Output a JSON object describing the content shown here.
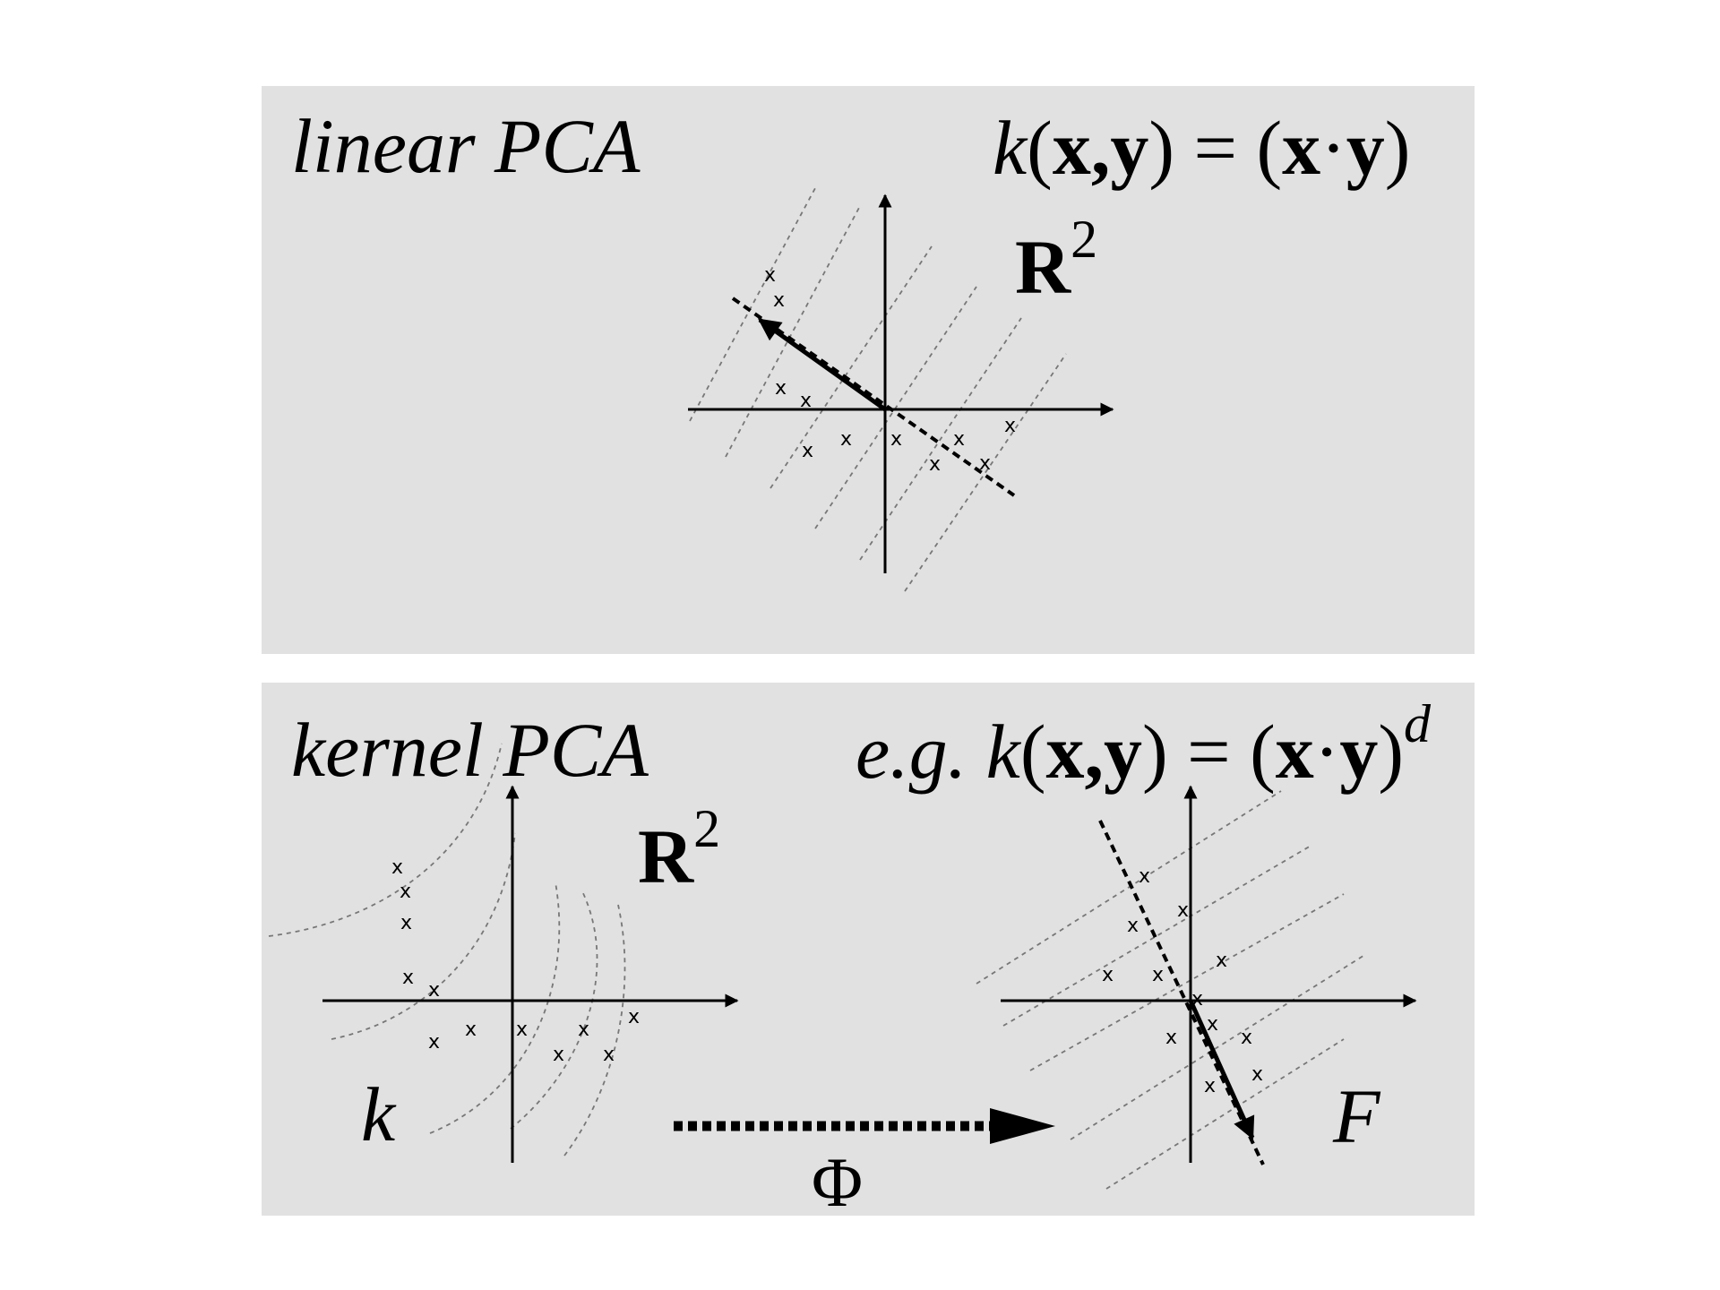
{
  "top_panel": {
    "title": "linear PCA",
    "kernel": {
      "k": "k",
      "lparen": "(",
      "args": "x,y",
      "eq": ") = (",
      "x": "x",
      "dot": "·",
      "y": "y",
      "rparen": ")"
    },
    "space": {
      "base": "R",
      "exp": "2"
    }
  },
  "bottom_panel": {
    "title": "kernel PCA",
    "kernel": {
      "prefix": "e.g. ",
      "k": "k",
      "lparen": "(",
      "args": "x,y",
      "eq": ") = (",
      "x": "x",
      "dot": "·",
      "y": "y",
      "rparen": ")",
      "exp": "d"
    },
    "input_space": {
      "base": "R",
      "exp": "2"
    },
    "input_label": "k",
    "mapping_label": "Φ",
    "feature_label": "F"
  },
  "point_marker": "x",
  "colors": {
    "panel_background": "#e1e1e1",
    "ink": "#000000",
    "contour_lines": "#777777",
    "page_background": "#ffffff"
  }
}
